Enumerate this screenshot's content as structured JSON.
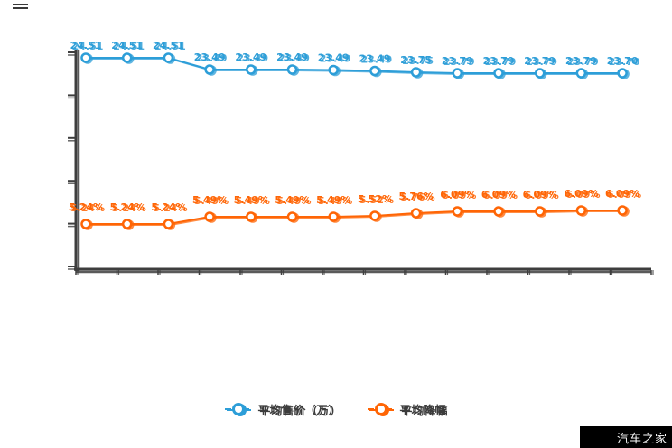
{
  "watermark": {
    "text": "汽车之家"
  },
  "chart_data": {
    "type": "line",
    "title": "",
    "xlabel": "",
    "ylabel": "",
    "x_axis_labels_visible": false,
    "y_axis_labels_visible": false,
    "grid": false,
    "legend_position": "bottom",
    "point_count": 14,
    "series": [
      {
        "name": "平均售价（万）",
        "color": "#2d9ed8",
        "values": [
          24.51,
          24.51,
          24.51,
          23.49,
          23.49,
          23.49,
          23.49,
          23.49,
          23.75,
          23.79,
          23.79,
          23.79,
          23.79,
          23.7
        ],
        "labels": [
          "24.51",
          "24.51",
          "24.51",
          "23.49",
          "23.49",
          "23.49",
          "23.49",
          "23.49",
          "23.75",
          "23.79",
          "23.79",
          "23.79",
          "23.79",
          "23.70"
        ],
        "py": [
          64,
          64,
          64,
          77,
          77,
          77,
          77.5,
          78.5,
          80,
          81,
          81,
          81,
          81,
          81
        ],
        "label_dy": -10
      },
      {
        "name": "平均降幅",
        "color": "#ff6505",
        "values": [
          5.24,
          5.24,
          5.24,
          5.49,
          5.49,
          5.49,
          5.49,
          5.52,
          5.76,
          6.09,
          6.09,
          6.09,
          6.09,
          6.09
        ],
        "labels": [
          "5.24%",
          "5.24%",
          "5.24%",
          "5.49%",
          "5.49%",
          "5.49%",
          "5.49%",
          "5.52%",
          "5.76%",
          "6.09%",
          "6.09%",
          "6.09%",
          "6.09%",
          "6.09%"
        ],
        "py": [
          248,
          248,
          248,
          240,
          240,
          240,
          240,
          239,
          236,
          234,
          234,
          234,
          233,
          233
        ],
        "label_dy": -15
      }
    ],
    "axis": {
      "color": "#3e3e3e",
      "y_tick_count": 6,
      "x_tick_count": 15
    }
  }
}
